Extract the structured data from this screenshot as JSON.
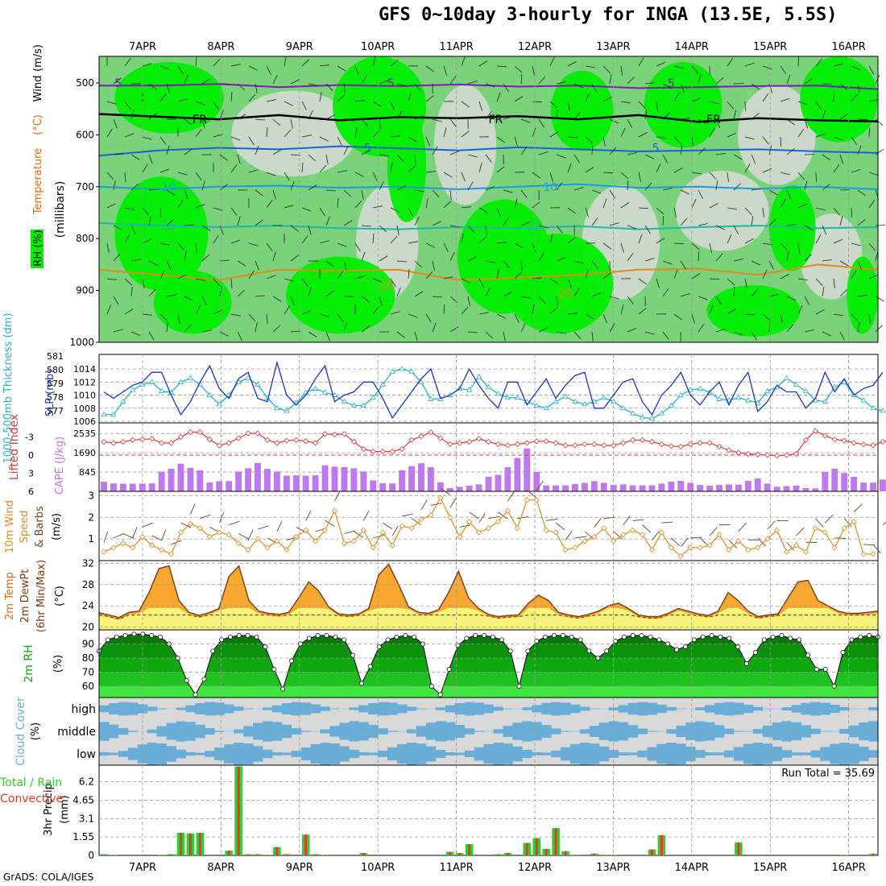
{
  "title": "GFS 0~10day 3-hourly for INGA (13.5E, 5.5S)",
  "credit": "GrADS: COLA/IGES",
  "colors": {
    "rh_light": "#cfd9cf",
    "rh_mid": "#7ad37a",
    "rh_high": "#00ee00",
    "rh_max": "#1f8f1f",
    "slp": "#1733cc",
    "thickness": "#22b5c8",
    "lifted": "#e03a3a",
    "cape": "#c078f0",
    "wind": "#e08b1c",
    "temp_top": "#e06a10",
    "temp_mid": "#f8a830",
    "dewpt": "#f5f57a",
    "rh2m_dark": "#0a7a0a",
    "rh2m_mid": "#10a810",
    "rh2m_light": "#3ee63e",
    "cloud": "#6aaed8",
    "cloud_bg": "#d9d9d9",
    "precip_total": "#33cc33",
    "precip_conv": "#ee3333"
  },
  "chart_data": {
    "type": "meteogram",
    "dates": [
      "7APR",
      "8APR",
      "9APR",
      "10APR",
      "11APR",
      "12APR",
      "13APR",
      "14APR",
      "15APR",
      "16APR"
    ],
    "panels": [
      {
        "id": "upper_air",
        "ylabel_parts": [
          "RH (%)",
          "Temperature",
          "(°C)",
          "Wind",
          "(m/s)"
        ],
        "ylabel2": "(millibars)",
        "yticks": [
          "500",
          "600",
          "700",
          "800",
          "900",
          "1000"
        ],
        "contour_labels": [
          {
            "text": "5",
            "p": 500
          },
          {
            "text": "5",
            "p": 500
          },
          {
            "text": "5",
            "p": 500
          },
          {
            "text": "FR",
            "p": 570
          },
          {
            "text": "FR",
            "p": 570
          },
          {
            "text": "FR",
            "p": 570
          },
          {
            "text": "5",
            "p": 625
          },
          {
            "text": "5",
            "p": 625
          },
          {
            "text": "10",
            "p": 700
          },
          {
            "text": "10",
            "p": 700
          },
          {
            "text": "15",
            "p": 775
          },
          {
            "text": "15",
            "p": 775
          },
          {
            "text": "20",
            "p": 890
          },
          {
            "text": "20",
            "p": 905
          }
        ],
        "isotherms": [
          {
            "name": "5 (upper)",
            "color": "#7a1fb0",
            "p": [
              505,
              505,
              502,
              508,
              504,
              506,
              503,
              507,
              505,
              510,
              508,
              506,
              505,
              512
            ]
          },
          {
            "name": "FR",
            "color": "#000000",
            "p": [
              560,
              565,
              570,
              562,
              572,
              566,
              568,
              564,
              570,
              562,
              575,
              568,
              572,
              574
            ]
          },
          {
            "name": "5",
            "color": "#1f5fd6",
            "p": [
              640,
              630,
              625,
              628,
              622,
              626,
              630,
              624,
              628,
              632,
              630,
              628,
              632,
              635
            ]
          },
          {
            "name": "10",
            "color": "#1f9ae0",
            "p": [
              700,
              705,
              700,
              698,
              702,
              700,
              705,
              700,
              695,
              702,
              700,
              704,
              700,
              705
            ]
          },
          {
            "name": "15",
            "color": "#22b8a0",
            "p": [
              770,
              775,
              778,
              775,
              780,
              782,
              778,
              780,
              776,
              782,
              778,
              775,
              780,
              778
            ]
          },
          {
            "name": "20",
            "color": "#e08b1c",
            "p": [
              860,
              870,
              880,
              860,
              862,
              860,
              880,
              875,
              870,
              860,
              858,
              870,
              850,
              860
            ]
          }
        ]
      },
      {
        "id": "slp_thickness",
        "ylabel_left": "1000-500mb Thickness (dm)",
        "ylabel_right": "SLP (mb)",
        "left_ticks": [
          "581",
          "580",
          "579",
          "578",
          "577"
        ],
        "right_ticks": [
          "1014",
          "1012",
          "1010",
          "1008",
          "1006"
        ],
        "slp": [
          1010.5,
          1009.5,
          1010.5,
          1011.5,
          1012,
          1013.5,
          1013.5,
          1010,
          1007,
          1009,
          1012,
          1014.5,
          1011,
          1009.5,
          1012.5,
          1013.5,
          1009.5,
          1009,
          1015,
          1010,
          1008.5,
          1010,
          1012.5,
          1014.5,
          1009,
          1010,
          1010.5,
          1012,
          1012,
          1009.5,
          1006.5,
          1008.5,
          1010.5,
          1012.5,
          1014,
          1009.5,
          1010,
          1011,
          1014,
          1011.5,
          1009.5,
          1008,
          1012,
          1012,
          1008.5,
          1010.5,
          1012.5,
          1009.5,
          1011.5,
          1013,
          1013.5,
          1008,
          1008,
          1010,
          1012,
          1012.5,
          1009,
          1007,
          1010,
          1011.5,
          1013.5,
          1010,
          1008.5,
          1010.5,
          1012,
          1008.5,
          1011.5,
          1013.5,
          1007.5,
          1009,
          1011.5,
          1010.5,
          1010.5,
          1008,
          1009.5,
          1013.5,
          1010.5,
          1012.5,
          1010,
          1011,
          1011.5,
          1013.5
        ],
        "thickness": [
          577.5,
          577.5,
          578.5,
          579.4,
          579.8,
          580,
          579.3,
          579.2,
          580,
          580.3,
          579.8,
          579,
          578.3,
          579,
          580,
          580.3,
          579.8,
          578.8,
          578,
          577.8,
          578.4,
          579.2,
          579.5,
          579.2,
          579,
          578.5,
          578.2,
          578.2,
          578.8,
          579.8,
          580.8,
          581,
          580.8,
          580,
          578.7,
          578.7,
          579,
          579.5,
          579.4,
          580.4,
          579.6,
          579.1,
          578.8,
          578.8,
          578.5,
          578.2,
          578,
          578.5,
          578.9,
          578.5,
          578.3,
          578.5,
          578.8,
          578.5,
          578,
          577.6,
          577.3,
          577.2,
          577.6,
          578.2,
          579,
          579.4,
          579.5,
          579.2,
          578.7,
          578.6,
          578.8,
          578.6,
          578.4,
          579.3,
          579.6,
          580.3,
          579.8,
          579.3,
          578.6,
          578.5,
          579.6,
          580,
          579,
          578.6,
          578,
          577.8
        ]
      },
      {
        "id": "cape_li",
        "ylabel_left": "Lifted Index",
        "ylabel_right": "CAPE (J/kg)",
        "left_ticks": [
          "-3",
          "0",
          "3",
          "6"
        ],
        "right_ticks": [
          "2535",
          "1690",
          "845"
        ],
        "cape": [
          420,
          350,
          330,
          330,
          340,
          350,
          860,
          990,
          1210,
          1030,
          920,
          390,
          440,
          450,
          860,
          1010,
          1240,
          980,
          870,
          690,
          700,
          690,
          700,
          1140,
          1080,
          1060,
          1010,
          870,
          480,
          360,
          350,
          920,
          1100,
          1230,
          1060,
          400,
          140,
          200,
          250,
          300,
          640,
          720,
          1060,
          1460,
          1880,
          850,
          260,
          260,
          260,
          320,
          370,
          450,
          370,
          280,
          300,
          260,
          260,
          260,
          340,
          420,
          460,
          370,
          280,
          250,
          280,
          300,
          290,
          460,
          560,
          340,
          200,
          230,
          250,
          140,
          130,
          850,
          990,
          800,
          640,
          380,
          380,
          520
        ],
        "lifted_index": [
          -2.2,
          -2.0,
          -2.2,
          -2.5,
          -2.6,
          -2.7,
          -2.0,
          -2.0,
          -3.0,
          -3.8,
          -3.8,
          -2.6,
          -1.6,
          -2.0,
          -2.8,
          -3.6,
          -3.6,
          -2.5,
          -2.0,
          -2.4,
          -2.5,
          -2.3,
          -2.0,
          -3.5,
          -3.4,
          -3.5,
          -2.2,
          -1.0,
          -0.6,
          -0.6,
          -0.6,
          -1.0,
          -2.5,
          -3.1,
          -3.8,
          -2.8,
          -1.8,
          -2.0,
          -2.2,
          -2.7,
          -2.2,
          -1.8,
          -1.6,
          -1.8,
          -2.0,
          -2.3,
          -2.3,
          -2.0,
          -1.6,
          -1.6,
          -1.8,
          -1.8,
          -1.6,
          -1.6,
          -2.0,
          -2.5,
          -2.5,
          -2.2,
          -1.8,
          -1.5,
          -1.4,
          -1.8,
          -2.0,
          -2.0,
          -1.4,
          -0.8,
          -0.4,
          -0.2,
          -0.1,
          0.0,
          0.1,
          0.0,
          -0.2,
          -2.5,
          -4.0,
          -3.2,
          -2.6,
          -2.4,
          -2.0,
          -1.8,
          -1.6,
          -2.2,
          -2.8
        ]
      },
      {
        "id": "wind10m",
        "ylabel_parts": [
          "10m Wind",
          "Speed",
          "& Barbs",
          "(m/s)"
        ],
        "yticks": [
          "3",
          "2",
          "1"
        ],
        "speed": [
          0.4,
          0.6,
          0.8,
          0.6,
          1.1,
          0.7,
          0.5,
          0.3,
          1.3,
          1.7,
          1.5,
          1.1,
          1.3,
          1.2,
          0.8,
          0.5,
          1.0,
          0.6,
          0.9,
          0.5,
          1.1,
          1.4,
          0.9,
          1.4,
          2.3,
          0.8,
          0.9,
          1.4,
          0.6,
          1.3,
          0.7,
          1.6,
          1.5,
          1.9,
          2.1,
          2.9,
          2.0,
          1.1,
          1.8,
          1.3,
          1.5,
          1.8,
          2.3,
          1.5,
          2.8,
          2.8,
          1.4,
          1.3,
          0.5,
          0.6,
          0.9,
          1.1,
          1.5,
          0.9,
          1.2,
          1.4,
          1.2,
          0.5,
          1.3,
          0.6,
          0.2,
          0.6,
          0.6,
          0.7,
          1.2,
          0.5,
          0.9,
          0.5,
          0.6,
          1.0,
          1.4,
          0.4,
          0.7,
          0.4,
          1.5,
          1.3,
          0.6,
          1.5,
          1.8,
          0.3,
          0.3,
          1.2,
          0.9,
          0.8
        ]
      },
      {
        "id": "temp2m",
        "ylabel_parts": [
          "2m Temp",
          "2m DewPt",
          "(6hr Min/Max)",
          "(°C)"
        ],
        "yticks": [
          "32",
          "28",
          "24",
          "20"
        ],
        "temp": [
          22.7,
          22.3,
          21.8,
          22.8,
          23.0,
          26.5,
          31.0,
          31.5,
          25.0,
          22.8,
          22.2,
          22.7,
          23.5,
          29.5,
          31.5,
          25.0,
          23.0,
          22.6,
          22.4,
          22.8,
          25.5,
          28.5,
          26.8,
          23.8,
          22.5,
          22.3,
          22.5,
          23.5,
          29.8,
          31.8,
          28.0,
          23.8,
          22.8,
          22.6,
          23.3,
          26.5,
          30.5,
          25.5,
          23.5,
          22.4,
          22.0,
          22.2,
          22.3,
          24.5,
          26.0,
          25.0,
          22.8,
          22.3,
          22.0,
          22.4,
          23.0,
          24.0,
          24.5,
          23.5,
          22.3,
          22.0,
          22.0,
          22.6,
          23.5,
          23.0,
          22.5,
          22.2,
          23.0,
          26.5,
          25.0,
          23.0,
          22.0,
          22.3,
          22.5,
          25.5,
          28.5,
          28.8,
          25.0,
          24.0,
          23.0,
          22.6,
          22.6,
          22.8,
          23.0
        ]
      },
      {
        "id": "rh2m",
        "ylabel": "2m RH",
        "yunit": "(%)",
        "yticks": [
          "90",
          "80",
          "70",
          "60"
        ],
        "rh": [
          85,
          93,
          95,
          96,
          97,
          97,
          96,
          95,
          90,
          80,
          64,
          54,
          65,
          85,
          93,
          95,
          96,
          96,
          95,
          88,
          72,
          58,
          78,
          90,
          94,
          96,
          96,
          95,
          93,
          82,
          62,
          74,
          88,
          93,
          95,
          96,
          95,
          90,
          60,
          54,
          72,
          89,
          94,
          96,
          96,
          95,
          93,
          85,
          60,
          85,
          92,
          95,
          96,
          96,
          95,
          93,
          85,
          80,
          85,
          92,
          95,
          96,
          96,
          95,
          93,
          90,
          86,
          88,
          93,
          95,
          96,
          95,
          94,
          88,
          76,
          84,
          93,
          95,
          96,
          94,
          93,
          82,
          72,
          72,
          60,
          84,
          93,
          95,
          96,
          95
        ]
      },
      {
        "id": "cloud",
        "ylabel": "Cloud Cover",
        "yunit": "(%)",
        "levels": [
          "high",
          "middle",
          "low"
        ]
      },
      {
        "id": "precip",
        "ylabel_parts": [
          "3hr Precip",
          "(mm)"
        ],
        "ylabel_left": "Total / Rain",
        "ylabel_left2": "Convective",
        "yticks": [
          "6.2",
          "4.65",
          "3.1",
          "1.55",
          "0"
        ],
        "run_total": "Run Total = 35.69",
        "total": [
          0.1,
          0.05,
          0,
          0,
          0,
          0,
          0.05,
          0.1,
          1.9,
          1.85,
          1.9,
          0,
          0,
          0.4,
          7.5,
          0.1,
          0.1,
          0.05,
          0.7,
          0.1,
          0,
          1.75,
          0.1,
          0.05,
          0,
          0,
          0,
          0.2,
          0,
          0,
          0,
          0,
          0,
          0,
          0,
          0,
          0.3,
          0.2,
          0.95,
          0,
          0,
          0.1,
          0.2,
          0,
          1.05,
          1.45,
          0.55,
          2.3,
          0.35,
          0.05,
          0,
          0.15,
          0.05,
          0.05,
          0,
          0,
          0,
          0.5,
          1.7,
          0,
          0,
          0,
          0,
          0,
          0,
          0,
          1.1,
          0,
          0,
          0,
          0,
          0,
          0,
          0,
          0,
          0,
          0,
          0.05,
          0,
          0,
          0.15,
          0.75,
          2.95,
          0.1,
          0,
          0.3,
          1.95,
          1.95,
          0
        ]
      }
    ]
  }
}
